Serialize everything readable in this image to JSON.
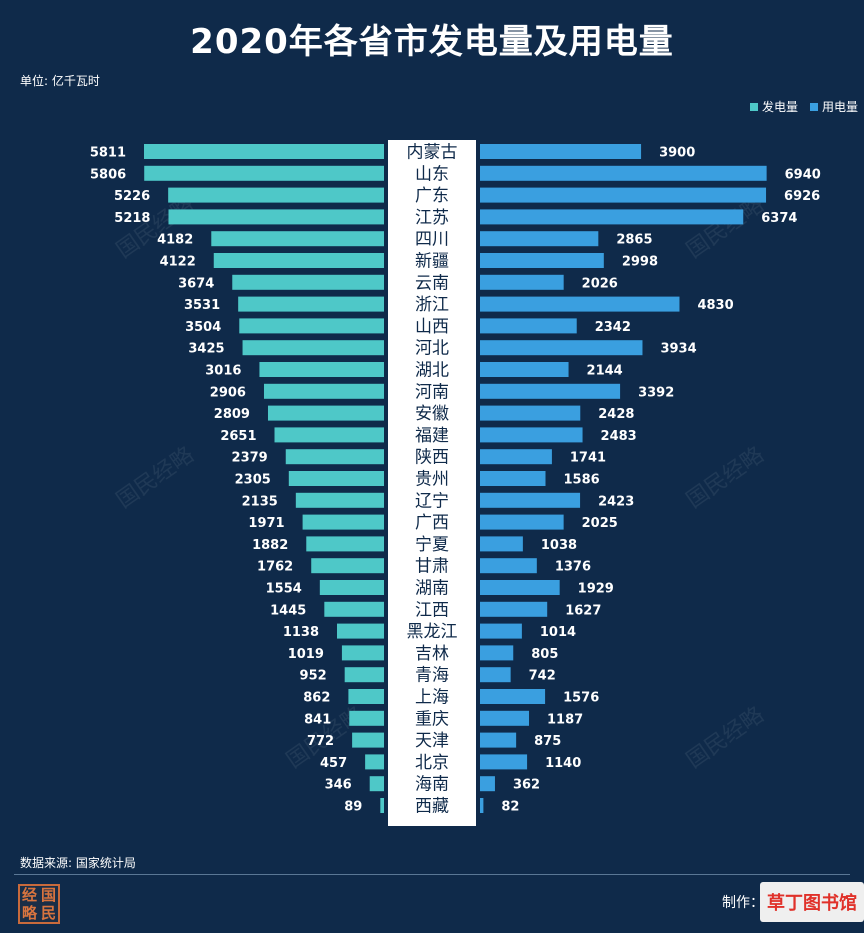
{
  "title": "2020年各省市发电量及用电量",
  "unit_label": "单位: 亿千瓦时",
  "source_label": "数据来源: 国家统计局",
  "credit_label": "制作：",
  "logo_chars": [
    "经",
    "国",
    "略",
    "民"
  ],
  "watermark_text": "国民经略",
  "site_badge": "草丁图书馆",
  "colors": {
    "background": "#0f2a4a",
    "generation": "#4ec8c8",
    "consumption": "#3a9fe0",
    "center_panel": "#ffffff",
    "province_text": "#0f2a4a"
  },
  "chart_data": {
    "type": "bar",
    "orientation": "horizontal-butterfly",
    "title": "2020年各省市发电量及用电量",
    "legend_position": "top-right",
    "categories": [
      "内蒙古",
      "山东",
      "广东",
      "江苏",
      "四川",
      "新疆",
      "云南",
      "浙江",
      "山西",
      "河北",
      "湖北",
      "河南",
      "安徽",
      "福建",
      "陕西",
      "贵州",
      "辽宁",
      "广西",
      "宁夏",
      "甘肃",
      "湖南",
      "江西",
      "黑龙江",
      "吉林",
      "青海",
      "上海",
      "重庆",
      "天津",
      "北京",
      "海南",
      "西藏"
    ],
    "series": [
      {
        "name": "发电量",
        "color": "#4ec8c8",
        "direction": "left",
        "values": [
          5811,
          5806,
          5226,
          5218,
          4182,
          4122,
          3674,
          3531,
          3504,
          3425,
          3016,
          2906,
          2809,
          2651,
          2379,
          2305,
          2135,
          1971,
          1882,
          1762,
          1554,
          1445,
          1138,
          1019,
          952,
          862,
          841,
          772,
          457,
          346,
          89
        ]
      },
      {
        "name": "用电量",
        "color": "#3a9fe0",
        "direction": "right",
        "values": [
          3900,
          6940,
          6926,
          6374,
          2865,
          2998,
          2026,
          4830,
          2342,
          3934,
          2144,
          3392,
          2428,
          2483,
          1741,
          1586,
          2423,
          2025,
          1038,
          1376,
          1929,
          1627,
          1014,
          805,
          742,
          1576,
          1187,
          875,
          1140,
          362,
          82
        ]
      }
    ],
    "xlim": [
      0,
      7000
    ],
    "grid": false
  }
}
